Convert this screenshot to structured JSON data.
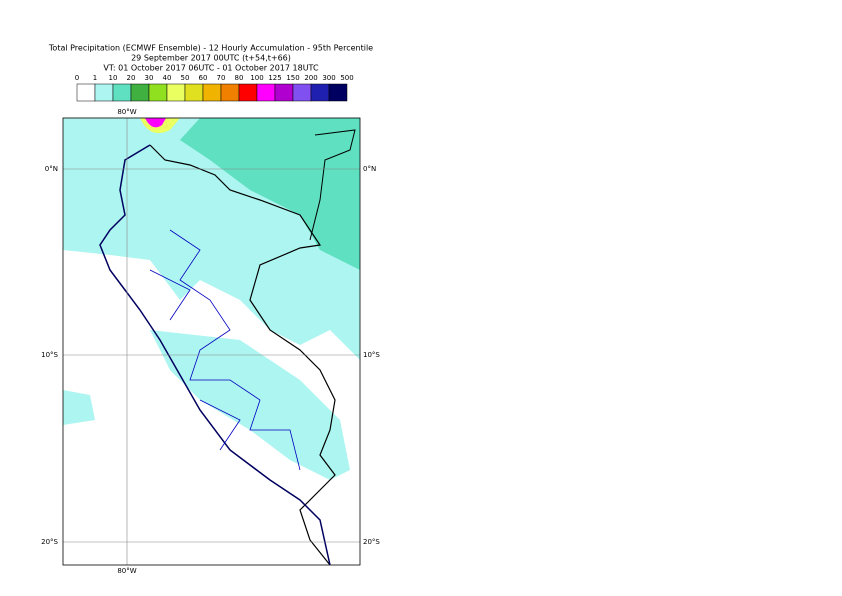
{
  "header": {
    "title": "Total Precipitation (ECMWF Ensemble) - 12 Hourly Accumulation - 95th Percentile",
    "run": "29 September 2017 00UTC (t+54,t+66)",
    "valid": "VT: 01 October 2017 06UTC - 01 October 2017 18UTC"
  },
  "legend": {
    "labels": [
      0,
      1,
      10,
      20,
      30,
      40,
      50,
      60,
      70,
      80,
      100,
      125,
      150,
      200,
      300,
      500
    ],
    "colors": [
      "#ffffff",
      "#adf5f0",
      "#5fe0c0",
      "#40b040",
      "#90e020",
      "#eaff60",
      "#e0e020",
      "#f0b400",
      "#f08000",
      "#ff0000",
      "#ff00ff",
      "#b000d0",
      "#8050f0",
      "#2020b0",
      "#000060"
    ]
  },
  "map": {
    "lat_labels": [
      "0°N",
      "10°S",
      "20°S"
    ],
    "lon_labels": [
      "80°W"
    ]
  }
}
